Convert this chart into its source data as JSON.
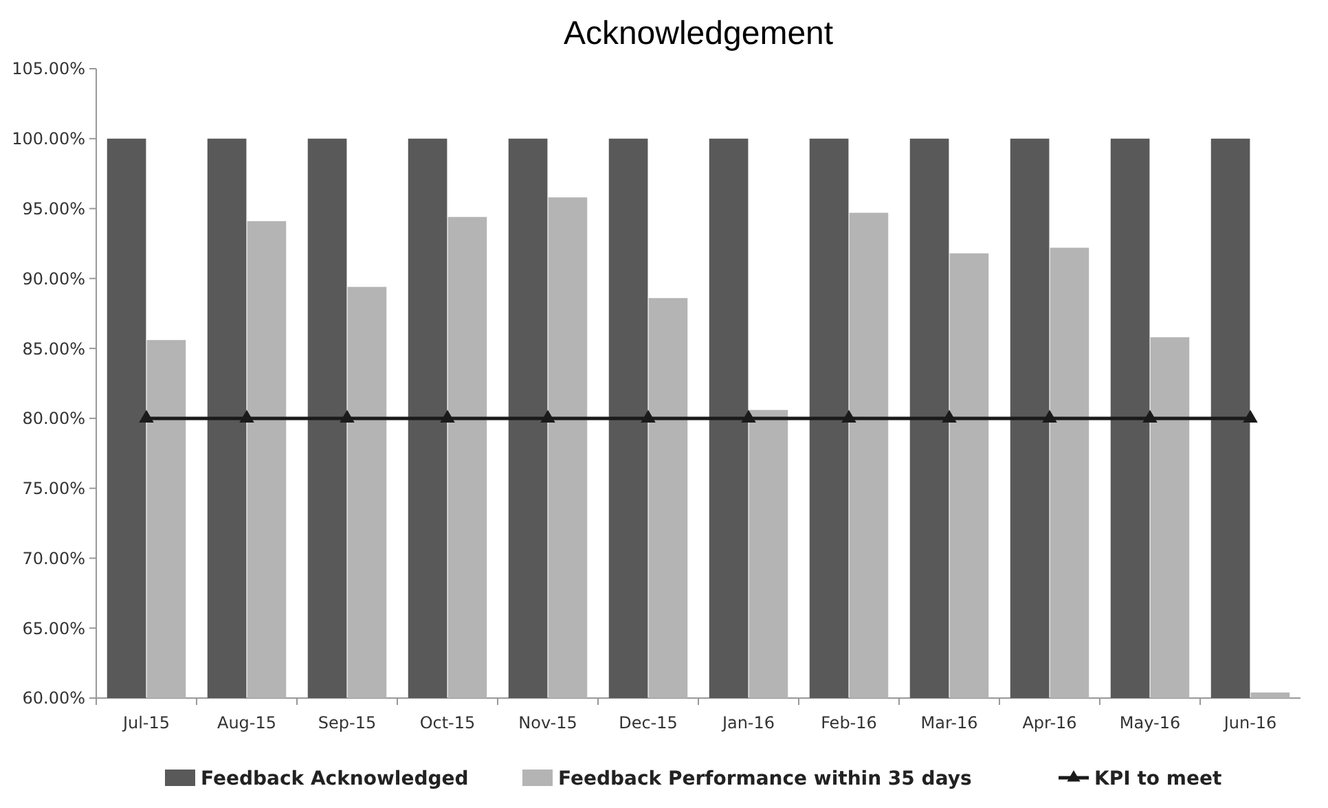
{
  "chart_data": {
    "type": "bar",
    "title": "Acknowledgement",
    "categories": [
      "Jul-15",
      "Aug-15",
      "Sep-15",
      "Oct-15",
      "Nov-15",
      "Dec-15",
      "Jan-16",
      "Feb-16",
      "Mar-16",
      "Apr-16",
      "May-16",
      "Jun-16"
    ],
    "series": [
      {
        "name": "Feedback Acknowledged",
        "color": "#595959",
        "values": [
          100,
          100,
          100,
          100,
          100,
          100,
          100,
          100,
          100,
          100,
          100,
          100
        ]
      },
      {
        "name": "Feedback Performance within 35 days",
        "color": "#b4b4b4",
        "values": [
          85.6,
          94.1,
          89.4,
          94.4,
          95.8,
          88.6,
          80.6,
          94.7,
          91.8,
          92.2,
          85.8,
          60.4
        ]
      },
      {
        "name": "KPI to meet",
        "type": "line",
        "color": "#1a1a1a",
        "marker": "triangle",
        "values": [
          80,
          80,
          80,
          80,
          80,
          80,
          80,
          80,
          80,
          80,
          80,
          80
        ]
      }
    ],
    "ylim": [
      60,
      105
    ],
    "yticks": [
      {
        "value": 60,
        "label": "60.00%"
      },
      {
        "value": 65,
        "label": "65.00%"
      },
      {
        "value": 70,
        "label": "70.00%"
      },
      {
        "value": 75,
        "label": "75.00%"
      },
      {
        "value": 80,
        "label": "80.00%"
      },
      {
        "value": 85,
        "label": "85.00%"
      },
      {
        "value": 90,
        "label": "90.00%"
      },
      {
        "value": 95,
        "label": "95.00%"
      },
      {
        "value": 100,
        "label": "100.00%"
      },
      {
        "value": 105,
        "label": "105.00%"
      }
    ],
    "legend": "bottom"
  }
}
